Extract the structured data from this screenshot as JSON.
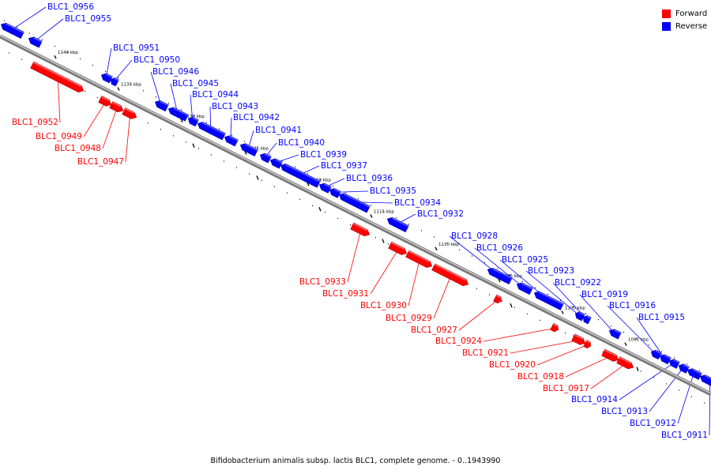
{
  "caption": "Bifidobacterium animalis subsp. lactis BLC1, complete genome. - 0..1943990",
  "legend": [
    {
      "label": "Forward",
      "color": "#ff0000"
    },
    {
      "label": "Reverse",
      "color": "#0000ff"
    }
  ],
  "colors": {
    "forward": "#ff0000",
    "reverse": "#0000ff",
    "backbone": "#808080"
  },
  "axis_ticks": [
    "1140 kbp",
    "1135 kbp",
    "1130 kbp",
    "1125 kbp",
    "1120 kbp",
    "1115 kbp",
    "1110 kbp",
    "1105 kbp",
    "1100 kbp",
    "1095 kbp"
  ],
  "genes": [
    {
      "name": "BLC1_0956",
      "strand": "reverse"
    },
    {
      "name": "BLC1_0955",
      "strand": "reverse"
    },
    {
      "name": "BLC1_0952",
      "strand": "forward"
    },
    {
      "name": "BLC1_0951",
      "strand": "reverse"
    },
    {
      "name": "BLC1_0950",
      "strand": "reverse"
    },
    {
      "name": "BLC1_0949",
      "strand": "forward"
    },
    {
      "name": "BLC1_0948",
      "strand": "forward"
    },
    {
      "name": "BLC1_0947",
      "strand": "forward"
    },
    {
      "name": "BLC1_0946",
      "strand": "reverse"
    },
    {
      "name": "BLC1_0945",
      "strand": "reverse"
    },
    {
      "name": "BLC1_0944",
      "strand": "reverse"
    },
    {
      "name": "BLC1_0943",
      "strand": "reverse"
    },
    {
      "name": "BLC1_0942",
      "strand": "reverse"
    },
    {
      "name": "BLC1_0941",
      "strand": "reverse"
    },
    {
      "name": "BLC1_0940",
      "strand": "reverse"
    },
    {
      "name": "BLC1_0939",
      "strand": "reverse"
    },
    {
      "name": "BLC1_0937",
      "strand": "reverse"
    },
    {
      "name": "BLC1_0936",
      "strand": "reverse"
    },
    {
      "name": "BLC1_0935",
      "strand": "reverse"
    },
    {
      "name": "BLC1_0934",
      "strand": "reverse"
    },
    {
      "name": "BLC1_0932",
      "strand": "reverse"
    },
    {
      "name": "BLC1_0933",
      "strand": "forward"
    },
    {
      "name": "BLC1_0931",
      "strand": "forward"
    },
    {
      "name": "BLC1_0930",
      "strand": "forward"
    },
    {
      "name": "BLC1_0929",
      "strand": "forward"
    },
    {
      "name": "BLC1_0928",
      "strand": "reverse"
    },
    {
      "name": "BLC1_0926",
      "strand": "reverse"
    },
    {
      "name": "BLC1_0925",
      "strand": "reverse"
    },
    {
      "name": "BLC1_0927",
      "strand": "forward"
    },
    {
      "name": "BLC1_0923",
      "strand": "reverse"
    },
    {
      "name": "BLC1_0922",
      "strand": "reverse"
    },
    {
      "name": "BLC1_0924",
      "strand": "forward"
    },
    {
      "name": "BLC1_0919",
      "strand": "reverse"
    },
    {
      "name": "BLC1_0921",
      "strand": "forward"
    },
    {
      "name": "BLC1_0920",
      "strand": "forward"
    },
    {
      "name": "BLC1_0916",
      "strand": "reverse"
    },
    {
      "name": "BLC1_0918",
      "strand": "forward"
    },
    {
      "name": "BLC1_0915",
      "strand": "reverse"
    },
    {
      "name": "BLC1_0917",
      "strand": "forward"
    },
    {
      "name": "BLC1_0914",
      "strand": "reverse"
    },
    {
      "name": "BLC1_0913",
      "strand": "reverse"
    },
    {
      "name": "BLC1_0912",
      "strand": "reverse"
    },
    {
      "name": "BLC1_0911",
      "strand": "reverse"
    }
  ]
}
